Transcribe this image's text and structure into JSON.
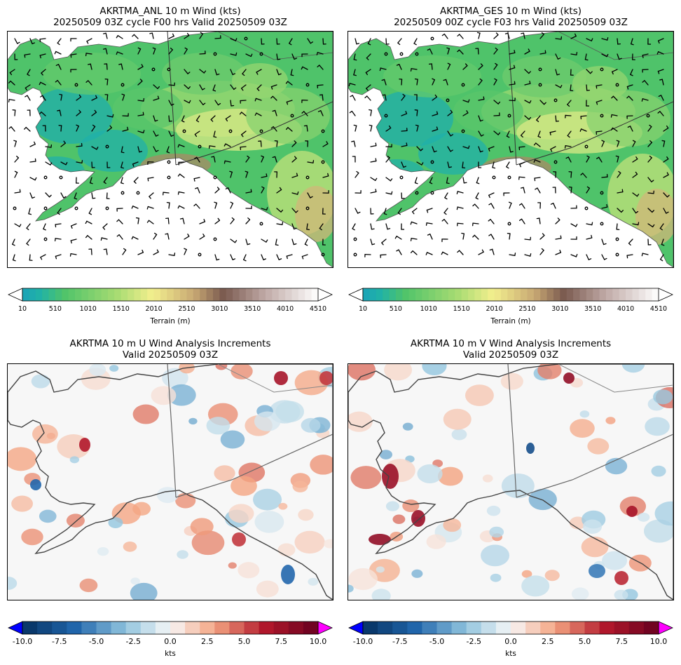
{
  "panels": {
    "top_left": {
      "title_line1": "AKRTMA_ANL 10 m Wind (kts)",
      "title_line2": "20250509 03Z cycle F00 hrs Valid 20250509 03Z"
    },
    "top_right": {
      "title_line1": "AKRTMA_GES 10 m Wind (kts)",
      "title_line2": "20250509 00Z cycle F03 hrs Valid 20250509 03Z"
    },
    "bottom_left": {
      "title_line1": "AKRTMA 10 m U Wind Analysis Increments",
      "title_line2": "Valid 20250509 03Z"
    },
    "bottom_right": {
      "title_line1": "AKRTMA 10 m V Wind Analysis Increments",
      "title_line2": "Valid 20250509 03Z"
    }
  },
  "terrain_colorbar": {
    "label": "Terrain (m)",
    "ticks": [
      "10",
      "510",
      "1010",
      "1510",
      "2010",
      "2510",
      "3010",
      "3510",
      "4010",
      "4510"
    ],
    "range": [
      10,
      4510
    ]
  },
  "increment_colorbar": {
    "label": "kts",
    "ticks": [
      "-10.0",
      "-7.5",
      "-5.0",
      "-2.5",
      "0.0",
      "2.5",
      "5.0",
      "7.5",
      "10.0"
    ],
    "range": [
      -10,
      10
    ],
    "under_color": "#0000ff",
    "over_color": "#ff00ff"
  },
  "colors": {
    "terrain_low": "#21b2a6",
    "terrain_mid": "#4fc36a",
    "terrain_high": "#f3ef8e",
    "terrain_peak": "#7a5a4f",
    "ocean": "#ffffff",
    "increment_neg": "#2166ac",
    "increment_pos": "#b2182b",
    "increment_zero": "#f7f7f7"
  }
}
